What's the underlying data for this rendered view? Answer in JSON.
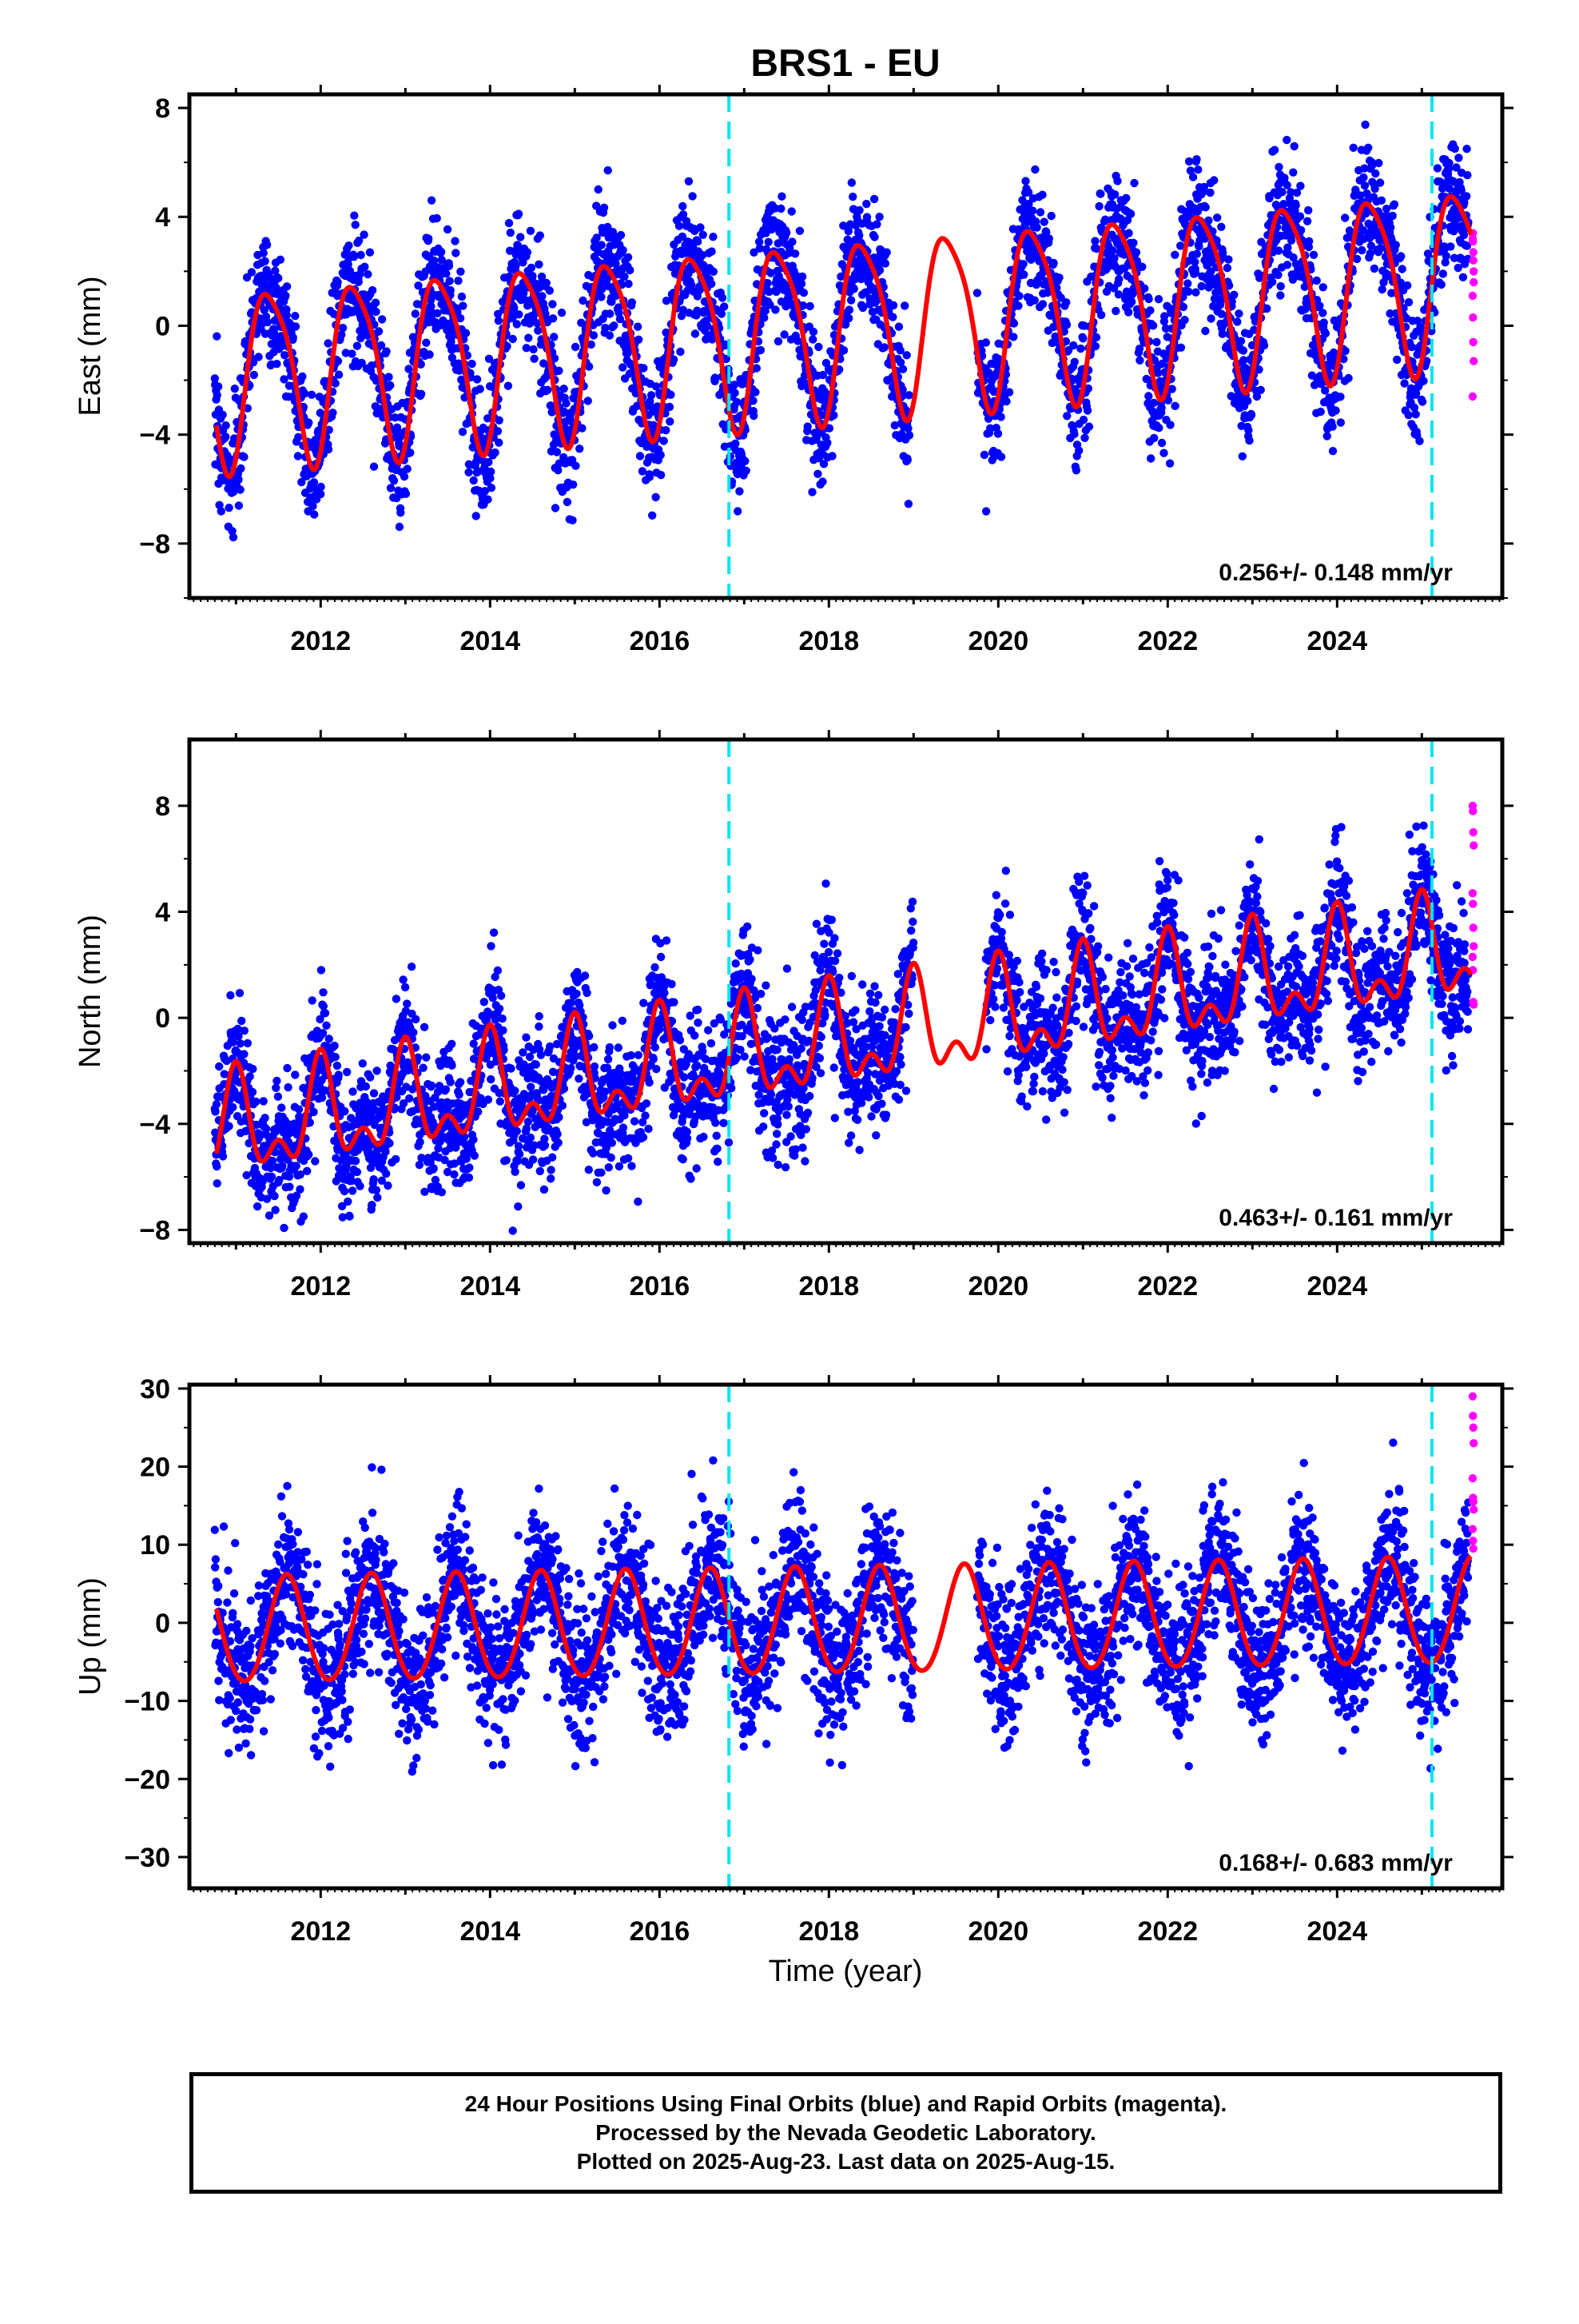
{
  "title": "BRS1 - EU",
  "xlabel": "Time (year)",
  "colors": {
    "final": "#0000ff",
    "rapid": "#ff00ff",
    "model": "#ff0000",
    "break": "#00e5ee"
  },
  "footer": {
    "line1": "24 Hour Positions Using Final Orbits (blue) and Rapid Orbits (magenta).",
    "line2": "Processed by the Nevada Geodetic Laboratory.",
    "line3": "Plotted on 2025-Aug-23. Last data on 2025-Aug-15."
  },
  "chart_data": [
    {
      "type": "scatter",
      "component": "East",
      "ylabel": "East (mm)",
      "rate_label": "0.256+/- 0.148 mm/yr",
      "xlim": [
        2010.45,
        2025.95
      ],
      "ylim": [
        -10,
        8.5
      ],
      "xticks": [
        2012,
        2014,
        2016,
        2018,
        2020,
        2022,
        2024
      ],
      "yticks": [
        -8,
        -4,
        0,
        4,
        8
      ],
      "yticklabels": [
        "−8",
        "−4",
        "0",
        "4",
        "8"
      ],
      "breaks": [
        2016.82,
        2025.12
      ],
      "model": {
        "offset": 0.0,
        "trend": 0.256,
        "t0": 2018.0,
        "annual_amp": 3.2,
        "annual_peak": 2016.4,
        "semiannual_amp": 0.6,
        "semiannual_peak": 2016.2
      },
      "final_range": [
        2010.75,
        2025.55
      ],
      "gaps": [
        [
          2018.95,
          2019.75
        ]
      ],
      "scatter_sigma": 1.2,
      "rapid_values": [
        3.2,
        3.1,
        2.7,
        2.0,
        1.1,
        0.3,
        -0.6,
        -1.3,
        -2.6,
        3.4,
        2.4,
        1.6
      ]
    },
    {
      "type": "scatter",
      "component": "North",
      "ylabel": "North (mm)",
      "rate_label": "0.463+/- 0.161 mm/yr",
      "xlim": [
        2010.45,
        2025.95
      ],
      "ylim": [
        -8.5,
        10.5
      ],
      "xticks": [
        2012,
        2014,
        2016,
        2018,
        2020,
        2022,
        2024
      ],
      "yticks": [
        -8,
        -4,
        0,
        4,
        8
      ],
      "yticklabels": [
        "−8",
        "−4",
        "0",
        "4",
        "8"
      ],
      "breaks": [
        2016.82,
        2025.12
      ],
      "model": {
        "offset": -1.0,
        "trend": 0.463,
        "t0": 2018.0,
        "annual_amp": 1.6,
        "annual_peak": 2017.0,
        "semiannual_amp": 1.0,
        "semiannual_peak": 2017.0
      },
      "final_range": [
        2010.75,
        2025.55
      ],
      "gaps": [
        [
          2019.0,
          2019.85
        ]
      ],
      "scatter_sigma": 1.25,
      "rapid_values": [
        8.0,
        7.8,
        7.0,
        6.5,
        4.7,
        4.3,
        3.4,
        2.7,
        2.3,
        1.8,
        0.6,
        0.5
      ]
    },
    {
      "type": "scatter",
      "component": "Up",
      "ylabel": "Up (mm)",
      "rate_label": "0.168+/- 0.683 mm/yr",
      "xlim": [
        2010.45,
        2025.95
      ],
      "ylim": [
        -34,
        30.5
      ],
      "xticks": [
        2012,
        2014,
        2016,
        2018,
        2020,
        2022,
        2024
      ],
      "yticks": [
        -30,
        -20,
        -10,
        0,
        10,
        20,
        30
      ],
      "yticklabels": [
        "−30",
        "−20",
        "−10",
        "0",
        "10",
        "20",
        "30"
      ],
      "breaks": [
        2016.82,
        2025.12
      ],
      "model": {
        "offset": 0.0,
        "trend": 0.168,
        "t0": 2018.0,
        "annual_amp": 6.8,
        "annual_peak": 2017.6,
        "semiannual_amp": 0.5,
        "semiannual_peak": 2017.6
      },
      "final_range": [
        2010.75,
        2025.55
      ],
      "gaps": [
        [
          2019.0,
          2019.75
        ]
      ],
      "scatter_sigma": 4.8,
      "rapid_values": [
        29.0,
        26.5,
        25.0,
        23.0,
        18.5,
        16.0,
        15.5,
        14.5,
        12.0,
        10.5,
        9.5
      ]
    }
  ]
}
